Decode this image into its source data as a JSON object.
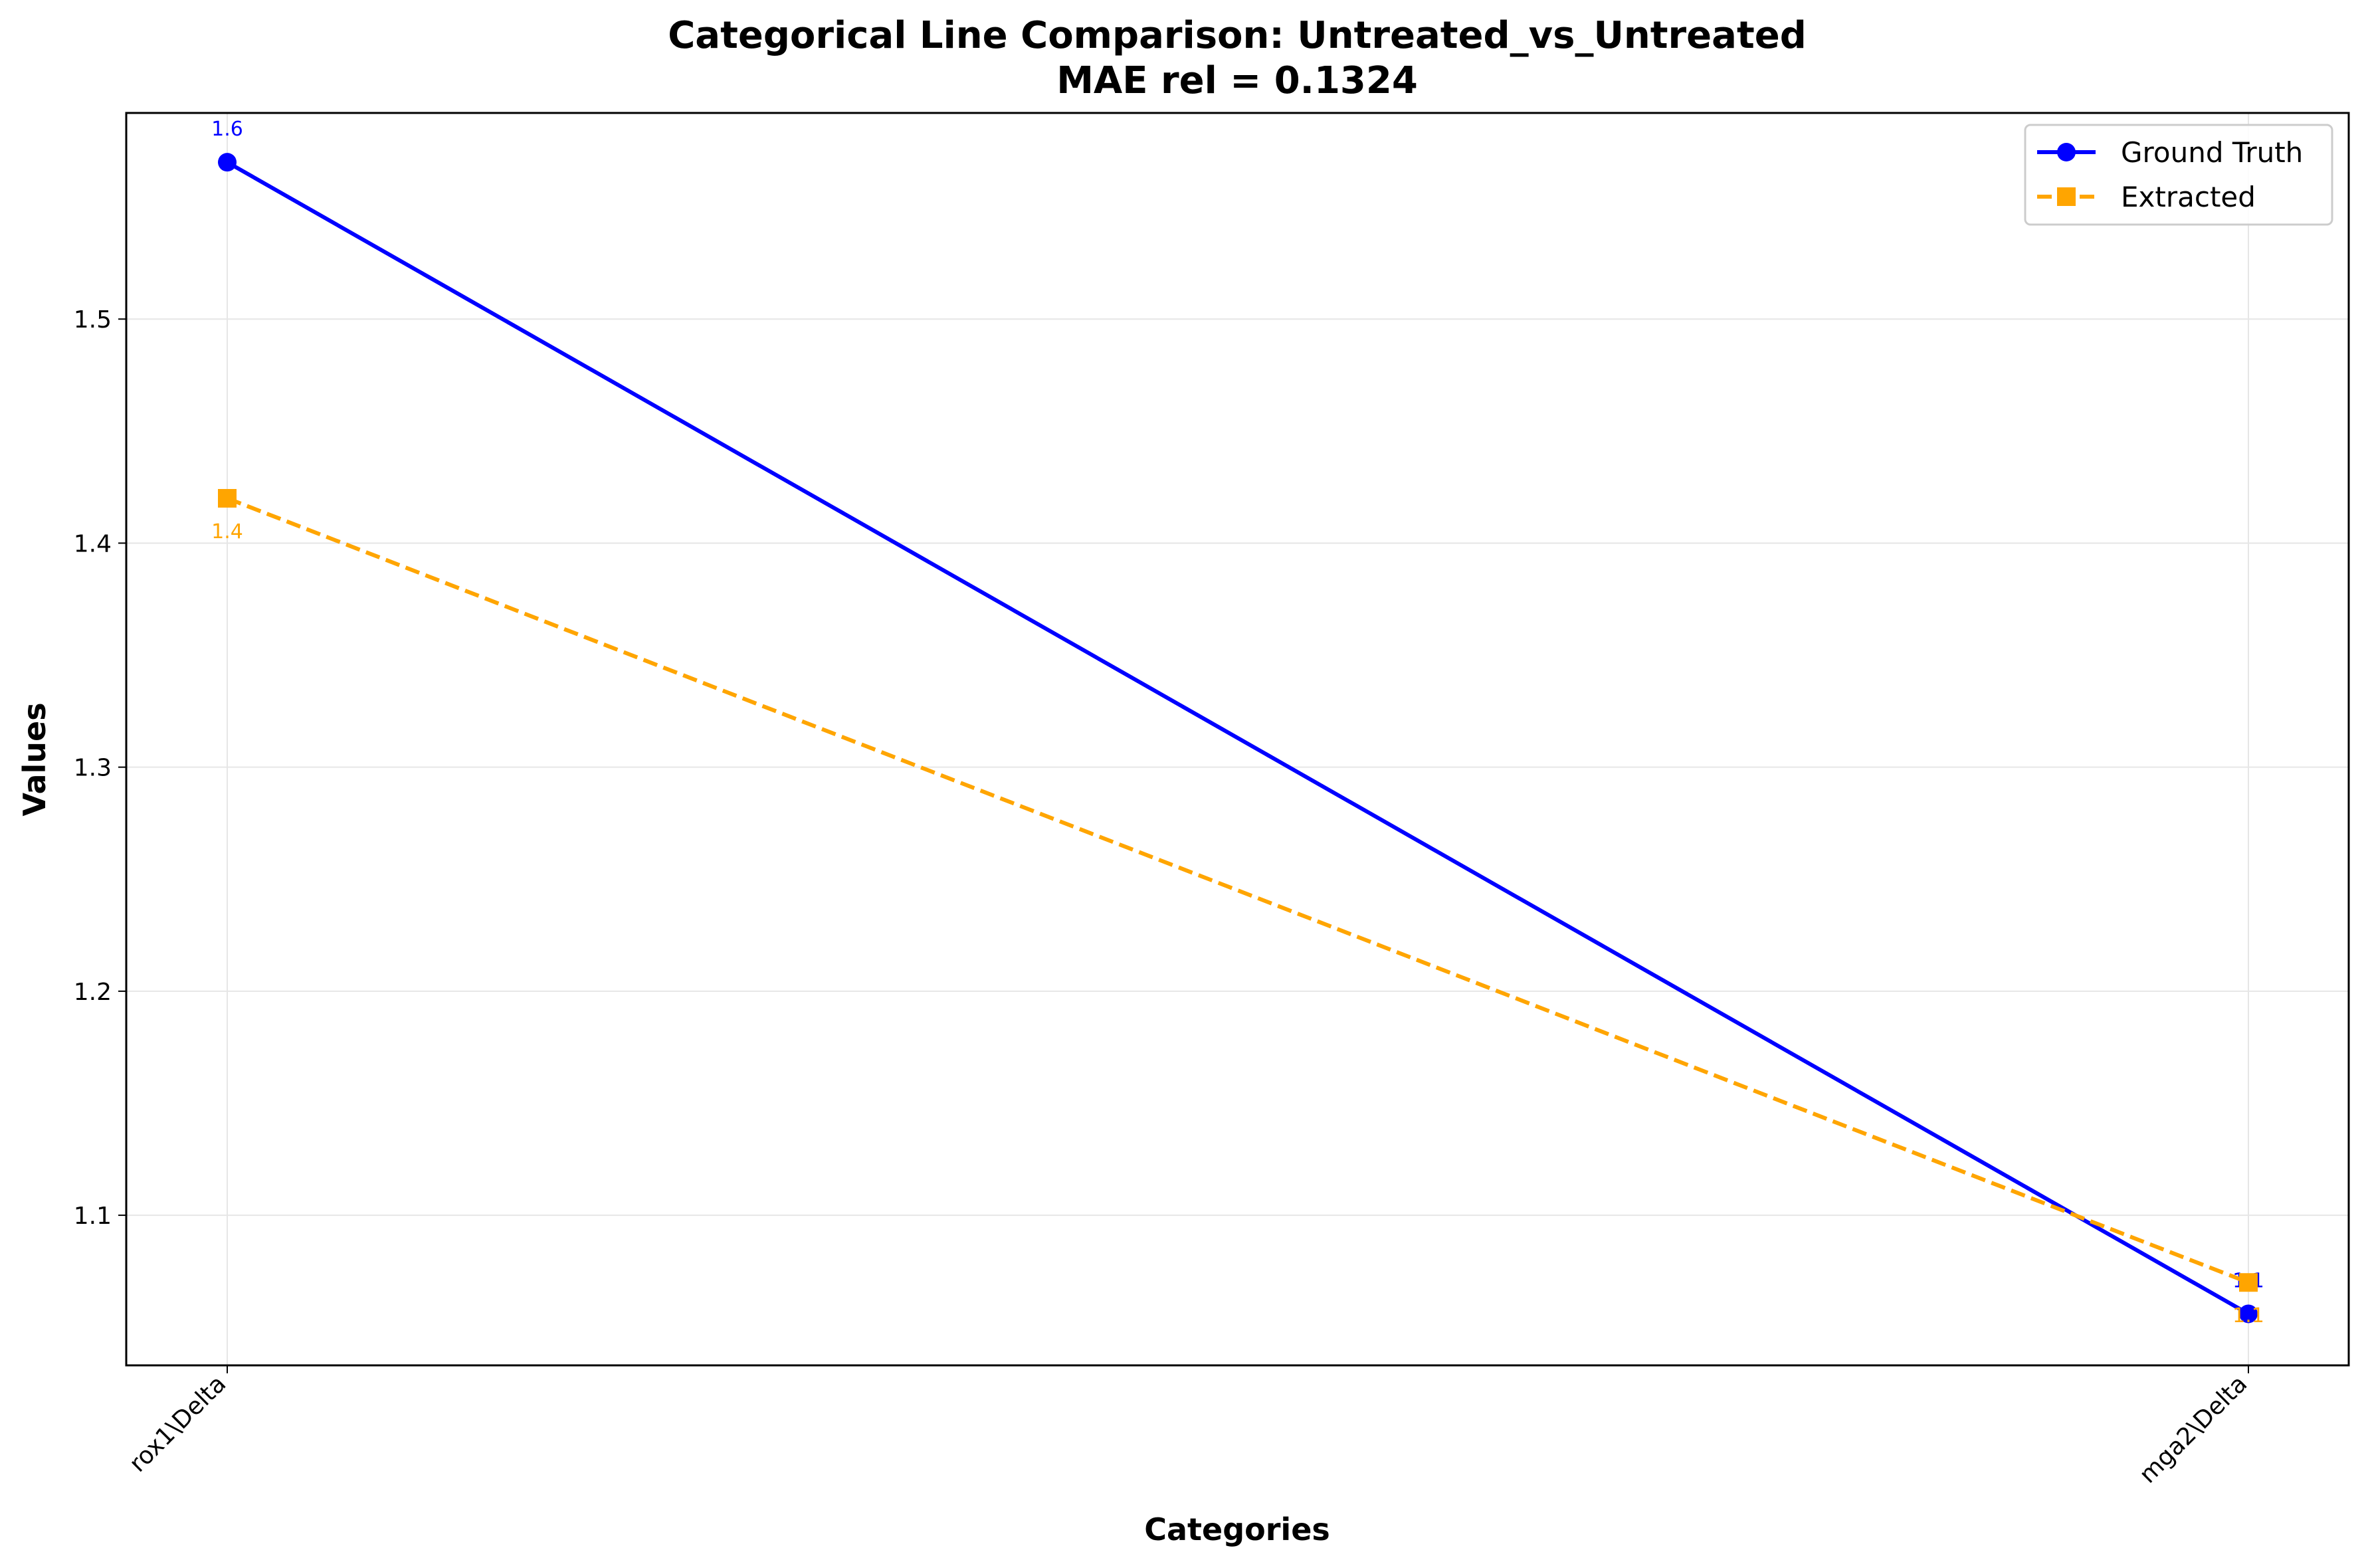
{
  "chart_data": {
    "type": "line",
    "title": "Categorical Line Comparison: Untreated_vs_Untreated",
    "subtitle": "MAE rel = 0.1324",
    "xlabel": "Categories",
    "ylabel": "Values",
    "categories": [
      "rox1\\Delta",
      "mga2\\Delta"
    ],
    "ylim": [
      1.033,
      1.592
    ],
    "yticks": [
      "1.1",
      "1.2",
      "1.3",
      "1.4",
      "1.5"
    ],
    "grid": true,
    "legend_position": "top-right",
    "series": [
      {
        "name": "Ground Truth",
        "values": [
          1.57,
          1.056
        ],
        "labels": [
          "1.6",
          "1.1"
        ],
        "color": "#0000ff",
        "linestyle": "solid",
        "marker": "circle"
      },
      {
        "name": "Extracted",
        "values": [
          1.42,
          1.07
        ],
        "labels": [
          "1.4",
          "1.1"
        ],
        "color": "#ffa500",
        "linestyle": "dashed",
        "marker": "square"
      }
    ]
  }
}
